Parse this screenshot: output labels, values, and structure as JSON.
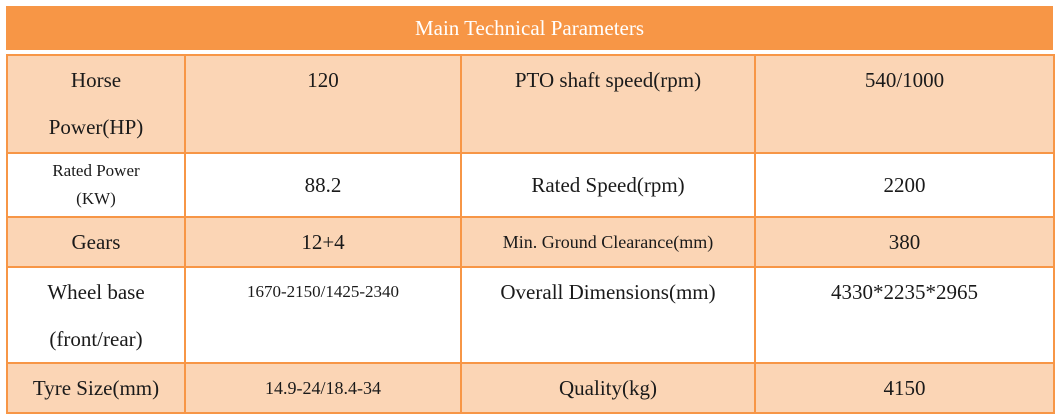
{
  "table": {
    "title": "Main Technical Parameters",
    "rows": [
      {
        "label_a_line1": "Horse",
        "label_a_line2": "Power(HP)",
        "value_a": "120",
        "label_b": "PTO shaft speed(rpm)",
        "value_b": "540/1000"
      },
      {
        "label_a_line1": "Rated Power",
        "label_a_line2": "(KW)",
        "value_a": "88.2",
        "label_b": "Rated Speed(rpm)",
        "value_b": "2200"
      },
      {
        "label_a": "Gears",
        "value_a": "12+4",
        "label_b": "Min. Ground Clearance(mm)",
        "value_b": "380"
      },
      {
        "label_a_line1": "Wheel base",
        "label_a_line2": "(front/rear)",
        "value_a": "1670-2150/1425-2340",
        "label_b": "Overall Dimensions(mm)",
        "value_b": "4330*2235*2965"
      },
      {
        "label_a": "Tyre Size(mm)",
        "value_a": "14.9-24/18.4-34",
        "label_b": "Quality(kg)",
        "value_b": "4150"
      }
    ]
  },
  "colors": {
    "header_background": "#f79646",
    "header_text": "#ffffff",
    "shaded_row_background": "#fbd5b5",
    "plain_row_background": "#ffffff",
    "grid_line": "#f79646"
  }
}
